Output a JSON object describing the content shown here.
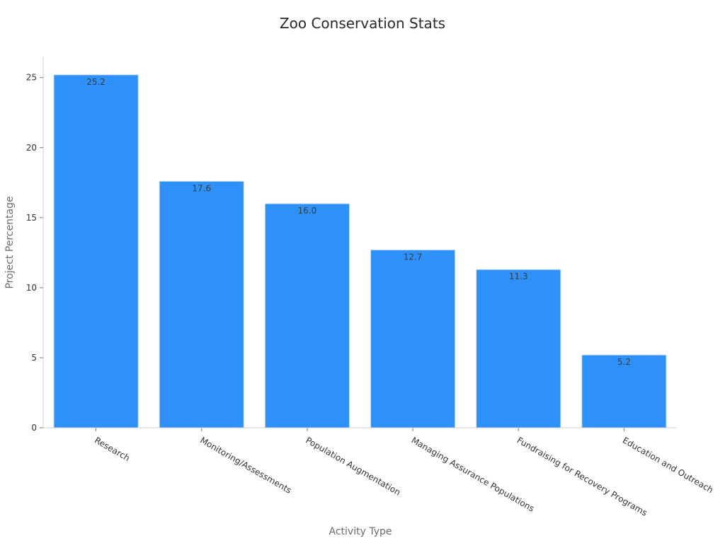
{
  "colors": {
    "bar": "#2d91f9",
    "bar_edge": "#d9e6f5"
  },
  "chart_data": {
    "type": "bar",
    "title": "Zoo Conservation Stats",
    "xlabel": "Activity Type",
    "ylabel": "Project Percentage",
    "categories": [
      "Research",
      "Monitoring/Assessments",
      "Population Augmentation",
      "Managing Assurance Populations",
      "Fundraising for Recovery Programs",
      "Education and Outreach"
    ],
    "values": [
      25.2,
      17.6,
      16.0,
      12.7,
      11.3,
      5.2
    ],
    "value_labels": [
      "25.2",
      "17.6",
      "16.0",
      "12.7",
      "11.3",
      "5.2"
    ],
    "ylim": [
      0,
      26.5
    ],
    "yticks": [
      0,
      5,
      10,
      15,
      20,
      25
    ],
    "ytick_labels": [
      "0",
      "5",
      "10",
      "15",
      "20",
      "25"
    ],
    "grid": false,
    "legend": "none"
  }
}
